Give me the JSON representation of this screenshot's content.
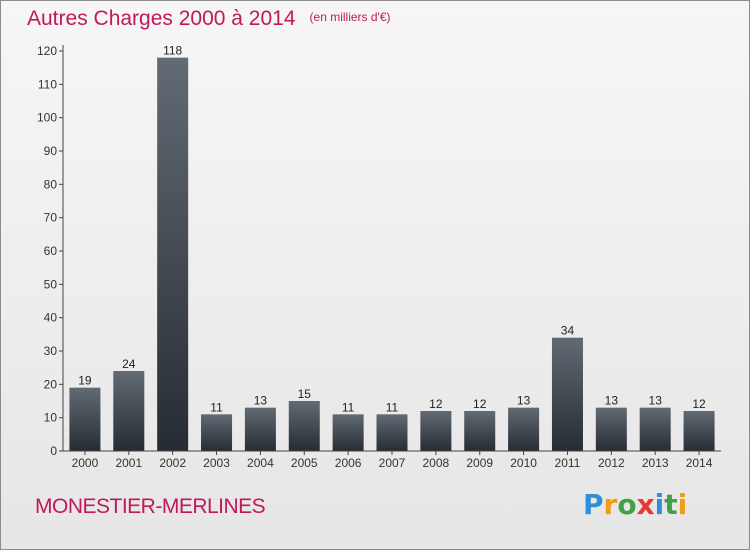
{
  "title": "Autres Charges 2000 à 2014",
  "title_unit": "(en milliers d'€)",
  "place": "MONESTIER-MERLINES",
  "logo": {
    "letters": [
      "P",
      "r",
      "o",
      "x",
      "i",
      "t",
      "i"
    ],
    "colors": [
      "#2f8fd8",
      "#f39c12",
      "#43a047",
      "#e53935",
      "#2f8fd8",
      "#43a047",
      "#f39c12"
    ]
  },
  "colors": {
    "bar_top": "#626a73",
    "bar_bottom": "#262c33",
    "title": "#c2185b"
  },
  "chart_data": {
    "type": "bar",
    "title": "Autres Charges 2000 à 2014",
    "xlabel": "",
    "ylabel": "",
    "categories": [
      "2000",
      "2001",
      "2002",
      "2003",
      "2004",
      "2005",
      "2006",
      "2007",
      "2008",
      "2009",
      "2010",
      "2011",
      "2012",
      "2013",
      "2014"
    ],
    "values": [
      19,
      24,
      118,
      11,
      13,
      15,
      11,
      11,
      12,
      12,
      13,
      34,
      13,
      13,
      12
    ],
    "ylim": [
      0,
      120
    ],
    "yticks": [
      0,
      10,
      20,
      30,
      40,
      50,
      60,
      70,
      80,
      90,
      100,
      110,
      120
    ],
    "grid": false,
    "data_labels": true
  }
}
